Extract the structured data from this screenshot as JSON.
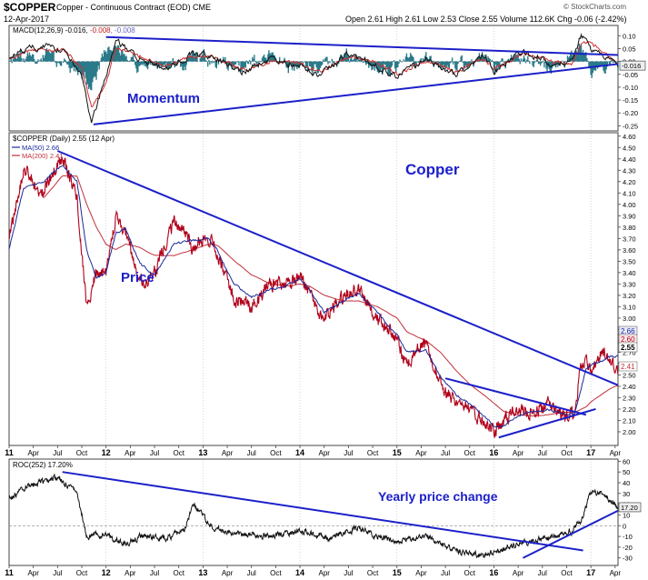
{
  "header": {
    "symbol": "$COPPER",
    "name": "Copper - Continuous Contract (EOD) CME",
    "date": "12-Apr-2017",
    "quote": "Open 2.61 High 2.61 Low 2.53 Close 2.55 Volume 112.6K Chg -0.06 (-2.42%)",
    "watermark": "© StockCharts.com"
  },
  "colors": {
    "price": "#b0001a",
    "ma50": "#1a2a9a",
    "ma200": "#c0303a",
    "trendline": "#1c20c8",
    "macd_line": "#111111",
    "macd_signal": "#d03030",
    "macd_hist": "#2a7a8a",
    "roc_line": "#111111",
    "annotation": "#1c20c8"
  },
  "chart_data": [
    {
      "type": "line",
      "panel": "macd",
      "title": "MACD(12,26,9) -0.016, -0.008, -0.008",
      "legend_title": "MACD(12,26,9) -0.016,",
      "legend_v1": "-0.008",
      "legend_v2": ", -0.008",
      "annotation": "Momentum",
      "ylim": [
        -0.27,
        0.14
      ],
      "yticks": [
        "0.10",
        "0.05",
        "0.00",
        "-0.05",
        "-0.10",
        "-0.15",
        "-0.20",
        "-0.25"
      ],
      "last_value_label": "-0.016",
      "x": [
        2011.0,
        2011.2,
        2011.4,
        2011.6,
        2011.75,
        2011.85,
        2012.0,
        2012.1,
        2012.3,
        2012.6,
        2012.9,
        2013.1,
        2013.4,
        2013.7,
        2014.0,
        2014.2,
        2014.5,
        2014.8,
        2015.0,
        2015.3,
        2015.6,
        2015.9,
        2016.0,
        2016.3,
        2016.6,
        2016.8,
        2016.9,
        2017.0,
        2017.2,
        2017.28
      ],
      "series": [
        {
          "values": [
            0.02,
            0.05,
            0.06,
            0.03,
            -0.06,
            -0.24,
            -0.05,
            0.08,
            0.02,
            -0.03,
            0.03,
            0.02,
            -0.04,
            0.01,
            -0.02,
            -0.05,
            0.03,
            -0.02,
            -0.06,
            0.01,
            -0.05,
            0.02,
            -0.04,
            0.04,
            -0.01,
            0.0,
            0.1,
            0.05,
            0.01,
            -0.016
          ]
        },
        {
          "values": [
            0.01,
            0.04,
            0.05,
            0.04,
            -0.03,
            -0.18,
            -0.08,
            0.05,
            0.03,
            -0.02,
            0.02,
            0.02,
            -0.03,
            0.0,
            -0.01,
            -0.04,
            0.02,
            -0.01,
            -0.05,
            0.0,
            -0.04,
            0.01,
            -0.03,
            0.03,
            0.0,
            -0.01,
            0.07,
            0.07,
            0.02,
            -0.008
          ]
        }
      ],
      "trendlines": [
        {
          "x": [
            2011.87,
            2017.28
          ],
          "y": [
            -0.245,
            -0.01
          ]
        },
        {
          "x": [
            2012.0,
            2017.28
          ],
          "y": [
            0.095,
            0.025
          ]
        }
      ]
    },
    {
      "type": "line",
      "panel": "price",
      "title": "$COPPER (Daily) 2.55 (12 Apr)",
      "annotation_title": "Copper",
      "annotation_price": "Price",
      "ylim": [
        1.88,
        4.63
      ],
      "yticks": [
        "4.60",
        "4.50",
        "4.40",
        "4.30",
        "4.20",
        "4.10",
        "4.00",
        "3.90",
        "3.80",
        "3.70",
        "3.60",
        "3.50",
        "3.40",
        "3.30",
        "3.20",
        "3.10",
        "3.00",
        "2.90",
        "2.80",
        "2.70",
        "2.60",
        "2.50",
        "2.40",
        "2.30",
        "2.20",
        "2.10",
        "2.00"
      ],
      "last_labels": [
        "2.66",
        "2.60",
        "2.55",
        "2.41"
      ],
      "x": [
        2011.0,
        2011.15,
        2011.35,
        2011.55,
        2011.7,
        2011.8,
        2011.9,
        2012.0,
        2012.1,
        2012.2,
        2012.35,
        2012.5,
        2012.7,
        2012.9,
        2013.05,
        2013.15,
        2013.3,
        2013.5,
        2013.7,
        2013.9,
        2014.0,
        2014.1,
        2014.25,
        2014.45,
        2014.6,
        2014.8,
        2015.0,
        2015.1,
        2015.3,
        2015.45,
        2015.6,
        2015.75,
        2015.9,
        2016.0,
        2016.1,
        2016.25,
        2016.4,
        2016.55,
        2016.7,
        2016.83,
        2016.88,
        2016.95,
        2017.0,
        2017.1,
        2017.2,
        2017.28
      ],
      "series": [
        {
          "name": "$COPPER",
          "values": [
            3.7,
            4.3,
            4.1,
            4.42,
            4.05,
            3.1,
            3.4,
            3.4,
            3.88,
            3.75,
            3.3,
            3.4,
            3.85,
            3.62,
            3.7,
            3.58,
            3.2,
            3.1,
            3.3,
            3.3,
            3.4,
            3.2,
            3.0,
            3.2,
            3.25,
            3.0,
            2.8,
            2.6,
            2.8,
            2.4,
            2.3,
            2.2,
            2.1,
            2.0,
            2.1,
            2.2,
            2.15,
            2.25,
            2.15,
            2.15,
            2.5,
            2.65,
            2.5,
            2.7,
            2.65,
            2.55
          ]
        },
        {
          "name": "MA(50) 2.66",
          "values": [
            3.6,
            4.15,
            4.2,
            4.35,
            4.2,
            3.6,
            3.35,
            3.4,
            3.75,
            3.78,
            3.48,
            3.38,
            3.65,
            3.68,
            3.7,
            3.6,
            3.32,
            3.18,
            3.25,
            3.3,
            3.35,
            3.25,
            3.05,
            3.15,
            3.22,
            3.05,
            2.85,
            2.7,
            2.72,
            2.48,
            2.33,
            2.25,
            2.14,
            2.05,
            2.05,
            2.15,
            2.18,
            2.2,
            2.16,
            2.15,
            2.32,
            2.55,
            2.58,
            2.62,
            2.66,
            2.66
          ]
        },
        {
          "name": "MA(200) 2.41",
          "values": [
            null,
            null,
            4.05,
            4.25,
            4.25,
            4.0,
            3.8,
            3.65,
            3.6,
            3.65,
            3.62,
            3.55,
            3.55,
            3.6,
            3.65,
            3.64,
            3.52,
            3.38,
            3.3,
            3.28,
            3.3,
            3.28,
            3.2,
            3.15,
            3.15,
            3.1,
            3.0,
            2.88,
            2.8,
            2.7,
            2.55,
            2.42,
            2.32,
            2.25,
            2.18,
            2.15,
            2.14,
            2.15,
            2.17,
            2.17,
            2.19,
            2.22,
            2.26,
            2.32,
            2.38,
            2.41
          ]
        }
      ],
      "trendlines": [
        {
          "x": [
            2011.5,
            2017.28
          ],
          "y": [
            4.47,
            2.41
          ]
        },
        {
          "x": [
            2015.5,
            2016.95
          ],
          "y": [
            2.47,
            2.15
          ]
        },
        {
          "x": [
            2016.05,
            2017.05
          ],
          "y": [
            1.95,
            2.2
          ]
        }
      ]
    },
    {
      "type": "line",
      "panel": "roc",
      "title": "ROC(252) 17.20%",
      "annotation": "Yearly price change",
      "ylim": [
        -37,
        62
      ],
      "yticks": [
        "60",
        "50",
        "40",
        "30",
        "20",
        "10",
        "0",
        "-10",
        "-20",
        "-30"
      ],
      "last_value_label": "17.20",
      "x": [
        2011.0,
        2011.15,
        2011.3,
        2011.5,
        2011.7,
        2011.8,
        2012.0,
        2012.2,
        2012.35,
        2012.6,
        2012.8,
        2012.9,
        2013.1,
        2013.4,
        2013.7,
        2014.0,
        2014.3,
        2014.6,
        2014.8,
        2015.0,
        2015.3,
        2015.5,
        2015.7,
        2015.9,
        2016.0,
        2016.2,
        2016.4,
        2016.6,
        2016.8,
        2016.9,
        2017.0,
        2017.1,
        2017.2,
        2017.28
      ],
      "series": [
        {
          "name": "ROC(252)",
          "values": [
            25,
            35,
            40,
            45,
            30,
            -10,
            -8,
            -18,
            -10,
            -12,
            -5,
            20,
            -2,
            -8,
            -10,
            -5,
            -12,
            -2,
            -10,
            -15,
            -10,
            -20,
            -25,
            -28,
            -25,
            -18,
            -15,
            -10,
            -5,
            5,
            32,
            30,
            25,
            17.2
          ]
        }
      ],
      "trendlines": [
        {
          "x": [
            2011.55,
            2016.92
          ],
          "y": [
            50,
            -23
          ]
        },
        {
          "x": [
            2016.3,
            2017.28
          ],
          "y": [
            -30,
            14
          ]
        }
      ]
    }
  ],
  "x_axis": {
    "ticks": [
      {
        "x": 2011.0,
        "label": "11"
      },
      {
        "x": 2011.25,
        "label": "Apr"
      },
      {
        "x": 2011.5,
        "label": "Jul"
      },
      {
        "x": 2011.75,
        "label": "Oct"
      },
      {
        "x": 2012.0,
        "label": "12"
      },
      {
        "x": 2012.25,
        "label": "Apr"
      },
      {
        "x": 2012.5,
        "label": "Jul"
      },
      {
        "x": 2012.75,
        "label": "Oct"
      },
      {
        "x": 2013.0,
        "label": "13"
      },
      {
        "x": 2013.25,
        "label": "Apr"
      },
      {
        "x": 2013.5,
        "label": "Jul"
      },
      {
        "x": 2013.75,
        "label": "Oct"
      },
      {
        "x": 2014.0,
        "label": "14"
      },
      {
        "x": 2014.25,
        "label": "Apr"
      },
      {
        "x": 2014.5,
        "label": "Jul"
      },
      {
        "x": 2014.75,
        "label": "Oct"
      },
      {
        "x": 2015.0,
        "label": "15"
      },
      {
        "x": 2015.25,
        "label": "Apr"
      },
      {
        "x": 2015.5,
        "label": "Jul"
      },
      {
        "x": 2015.75,
        "label": "Oct"
      },
      {
        "x": 2016.0,
        "label": "16"
      },
      {
        "x": 2016.25,
        "label": "Apr"
      },
      {
        "x": 2016.5,
        "label": "Jul"
      },
      {
        "x": 2016.75,
        "label": "Oct"
      },
      {
        "x": 2017.0,
        "label": "17"
      },
      {
        "x": 2017.25,
        "label": "Apr"
      }
    ]
  }
}
